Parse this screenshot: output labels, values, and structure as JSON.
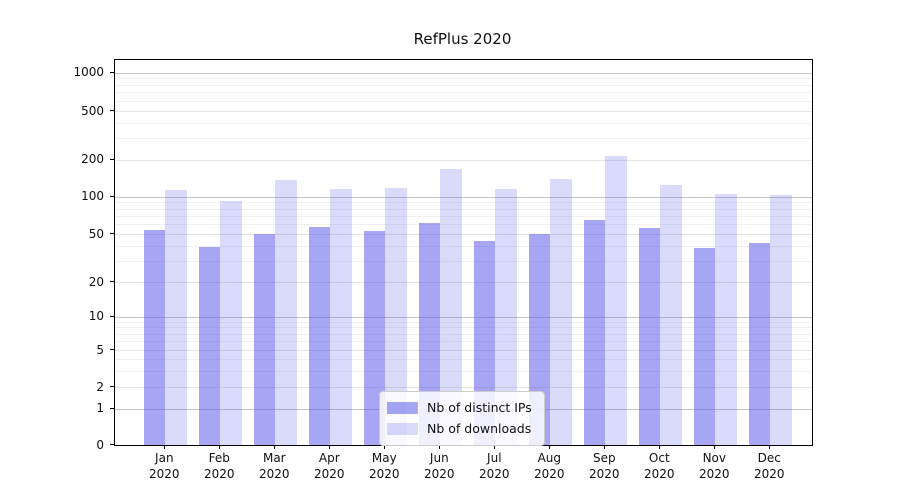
{
  "chart_data": {
    "type": "bar",
    "title": "RefPlus 2020",
    "categories": [
      "Jan 2020",
      "Feb 2020",
      "Mar 2020",
      "Apr 2020",
      "May 2020",
      "Jun 2020",
      "Jul 2020",
      "Aug 2020",
      "Sep 2020",
      "Oct 2020",
      "Nov 2020",
      "Dec 2020"
    ],
    "series": [
      {
        "name": "Nb of distinct IPs",
        "color": "rgba(85,85,235,0.52)",
        "base_color": "#5555eb",
        "values": [
          54,
          39,
          50,
          57,
          53,
          61,
          44,
          50,
          65,
          56,
          38,
          42
        ]
      },
      {
        "name": "Nb of downloads",
        "color": "rgba(85,85,235,0.22)",
        "base_color": "#5555eb",
        "values": [
          112,
          92,
          136,
          116,
          118,
          168,
          115,
          139,
          213,
          125,
          104,
          103
        ]
      }
    ],
    "y_axis": {
      "scale": "symlog",
      "ticks": [
        0,
        1,
        2,
        5,
        10,
        20,
        50,
        100,
        200,
        500,
        1000
      ],
      "range": [
        0,
        1400
      ]
    },
    "x_axis": {
      "tick_label_lines": 2
    },
    "grid": "horizontal",
    "legend": {
      "position": "bottom-center",
      "entries": [
        "Nb of distinct IPs",
        "Nb of downloads"
      ]
    },
    "colors": {
      "bar_dark": "#aaaaf4",
      "bar_light": "#d9d9f8",
      "grid_major": "#c6c6c6",
      "grid_minor": "#efefef",
      "axis": "#000000",
      "background": "#ffffff"
    }
  }
}
